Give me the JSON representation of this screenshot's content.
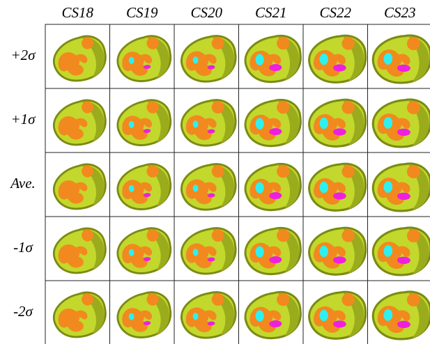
{
  "columns": [
    "CS18",
    "CS19",
    "CS20",
    "CS21",
    "CS22",
    "CS23"
  ],
  "rows": [
    "+2σ",
    "+1σ",
    "Ave.",
    "-1σ",
    "-2σ"
  ]
}
